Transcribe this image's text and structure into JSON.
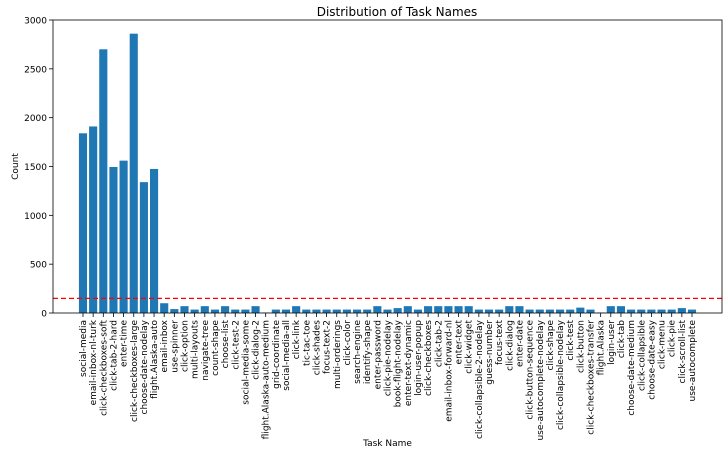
{
  "chart_data": {
    "type": "bar",
    "title": "Distribution of Task Names",
    "xlabel": "Task Name",
    "ylabel": "Count",
    "ylim": [
      0,
      3000
    ],
    "yticks": [
      0,
      500,
      1000,
      1500,
      2000,
      2500,
      3000
    ],
    "bar_color": "#1f77b4",
    "reference_line": {
      "value": 150,
      "color": "#ff0000",
      "style": "dashed"
    },
    "categories": [
      "social-media",
      "email-inbox-nl-turk",
      "click-checkboxes-soft",
      "click-tab-2-hard",
      "enter-time",
      "click-checkboxes-large",
      "choose-date-nodelay",
      "flight.Alaska-auto",
      "email-inbox",
      "use-spinner",
      "click-option",
      "multi-layouts",
      "navigate-tree",
      "count-shape",
      "choose-list",
      "click-test-2",
      "social-media-some",
      "click-dialog-2",
      "flight.Alaska-auto-medium",
      "grid-coordinate",
      "social-media-all",
      "click-link",
      "tic-tac-toe",
      "click-shades",
      "focus-text-2",
      "multi-orderings",
      "click-color",
      "search-engine",
      "identify-shape",
      "enter-password",
      "click-pie-nodelay",
      "book-flight-nodelay",
      "enter-text-dynamic",
      "login-user-popup",
      "click-checkboxes",
      "click-tab-2",
      "email-inbox-forward-nl",
      "enter-text",
      "click-widget",
      "click-collapsible-2-nodelay",
      "guess-number",
      "focus-text",
      "click-dialog",
      "enter-date",
      "click-button-sequence",
      "use-autocomplete-nodelay",
      "click-shape",
      "click-collapsible-nodelay",
      "click-test",
      "click-button",
      "click-checkboxes-transfer",
      "flight.Alaska",
      "login-user",
      "click-tab",
      "choose-date-medium",
      "click-collapsible",
      "choose-date-easy",
      "click-menu",
      "click-pie",
      "click-scroll-list",
      "use-autocomplete"
    ],
    "values": [
      1840,
      1910,
      2700,
      1495,
      1560,
      2860,
      1340,
      1475,
      100,
      40,
      70,
      35,
      70,
      35,
      70,
      35,
      35,
      70,
      5,
      35,
      35,
      70,
      35,
      35,
      35,
      35,
      35,
      35,
      35,
      70,
      35,
      50,
      70,
      35,
      70,
      70,
      70,
      70,
      70,
      35,
      35,
      35,
      70,
      70,
      35,
      35,
      35,
      35,
      35,
      55,
      35,
      5,
      70,
      70,
      35,
      35,
      35,
      35,
      35,
      50,
      35
    ]
  }
}
